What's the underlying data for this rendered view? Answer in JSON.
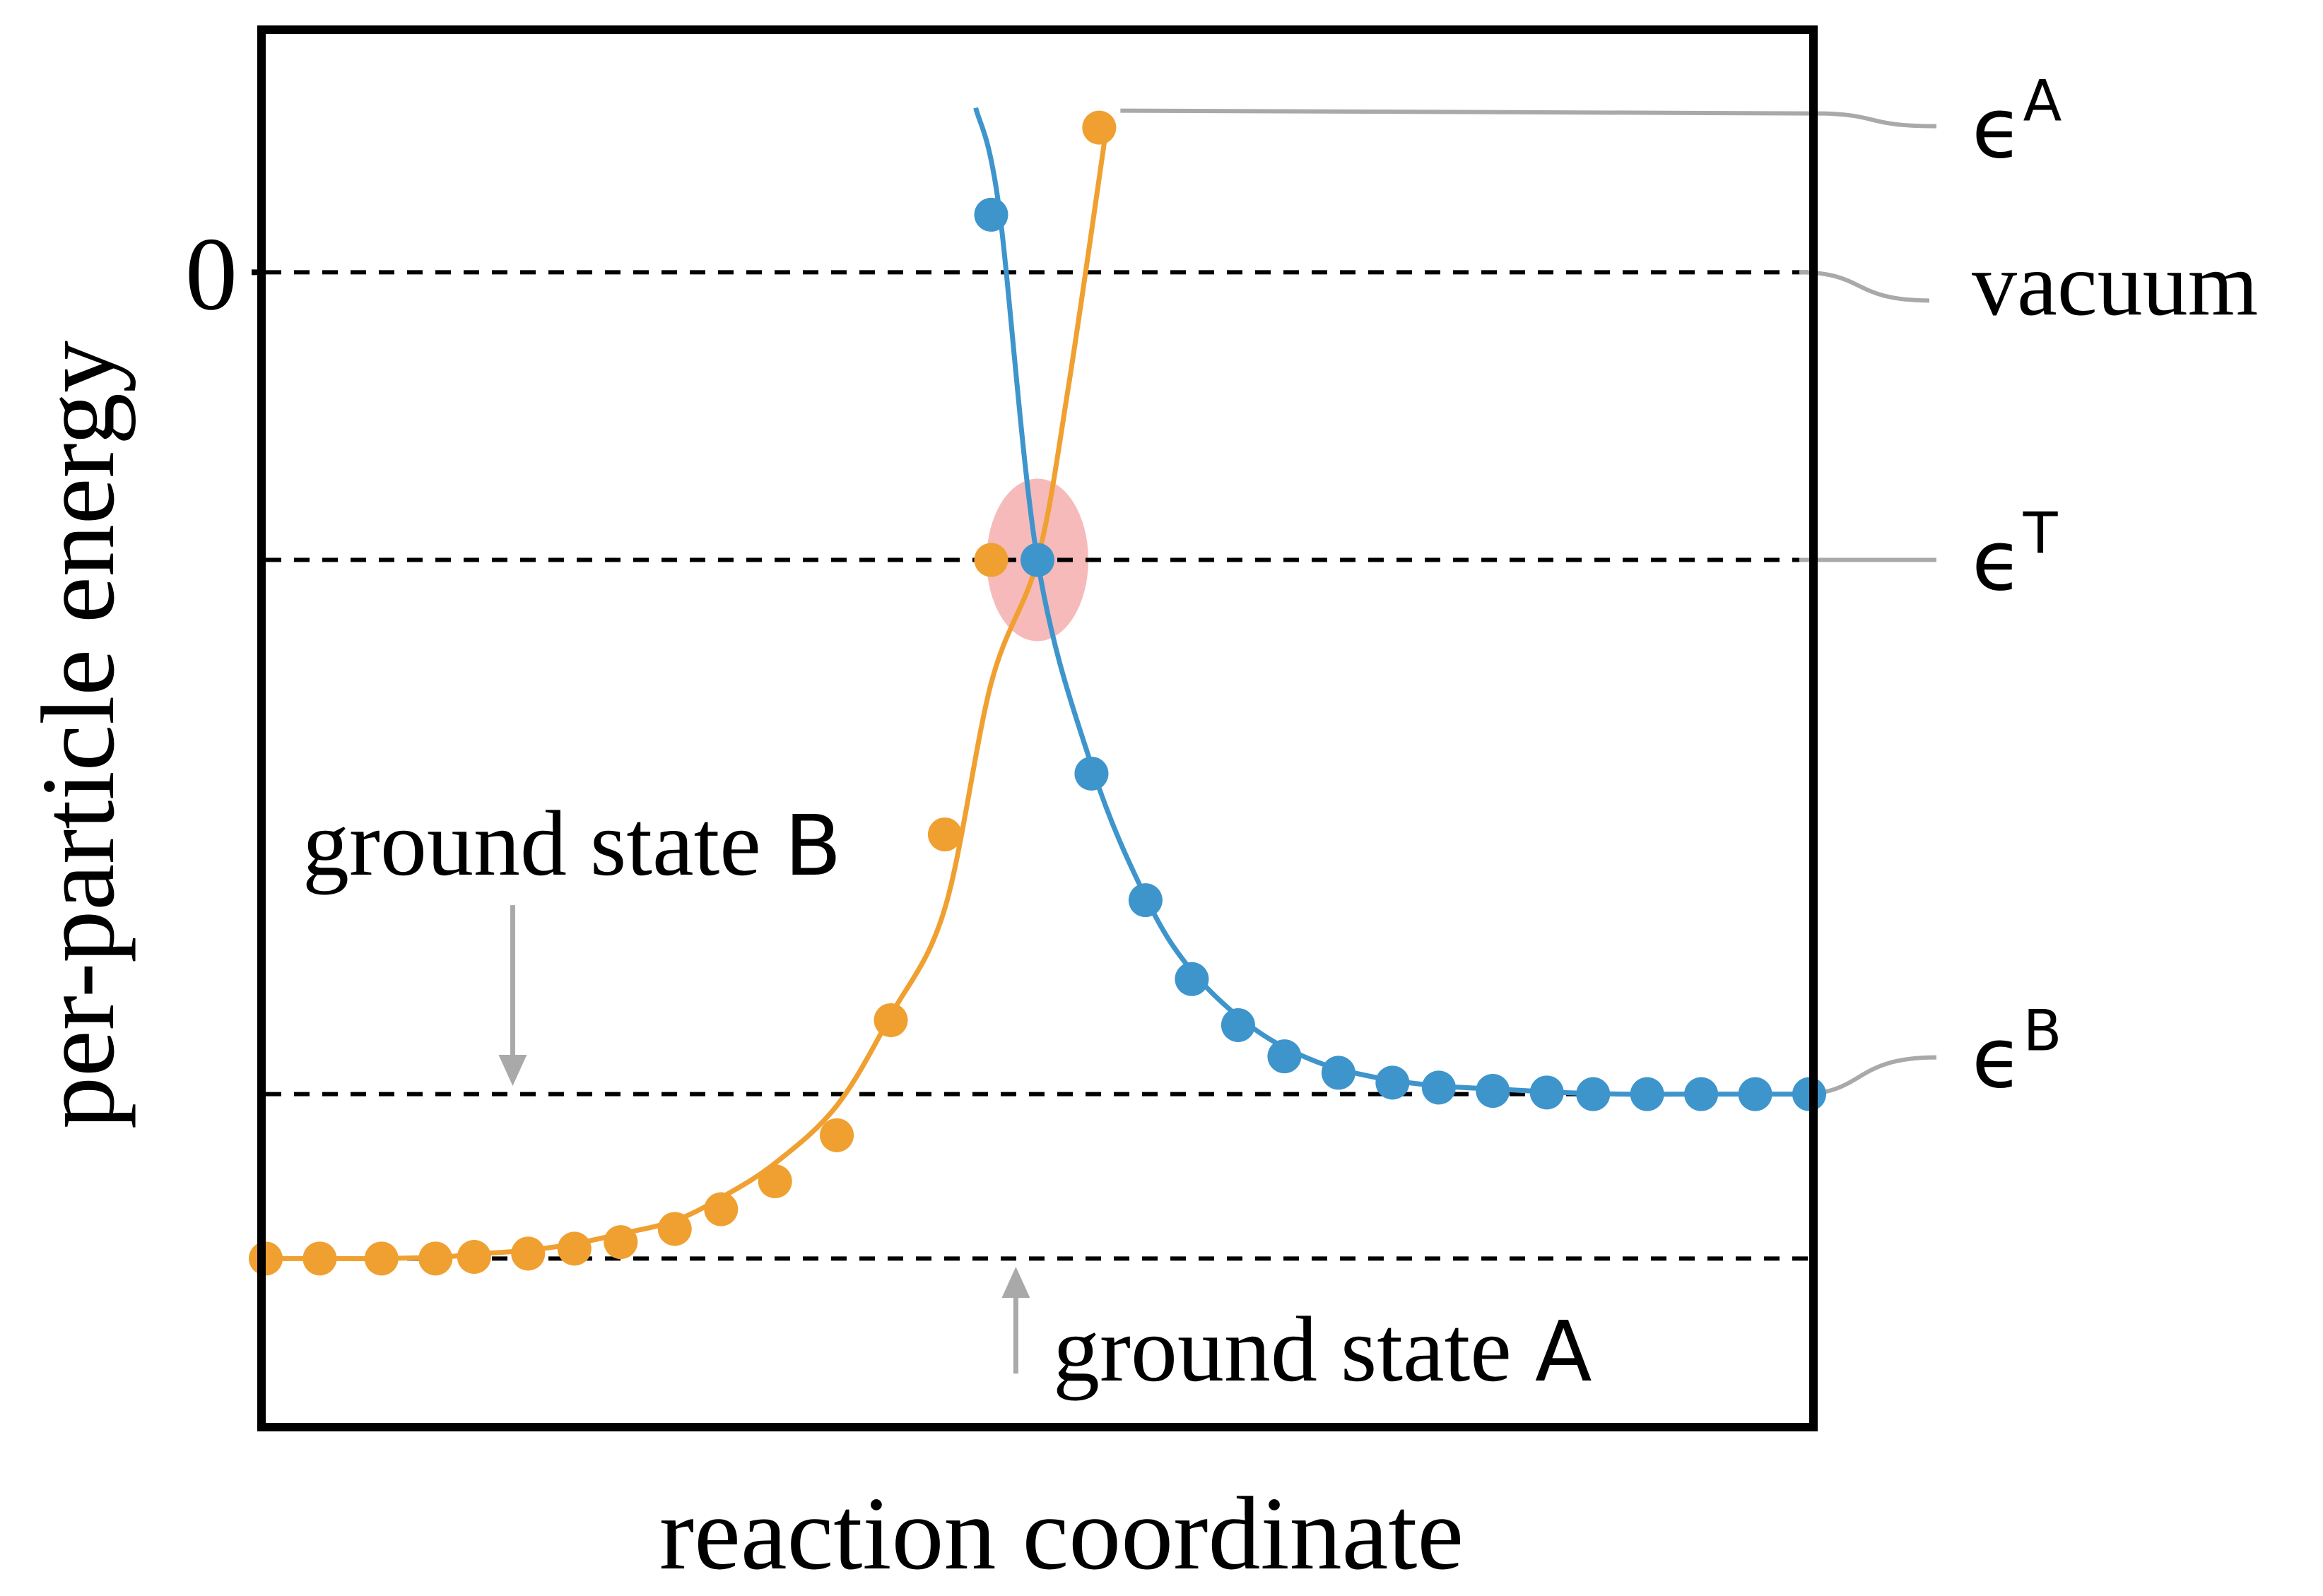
{
  "chart_data": {
    "type": "line",
    "title": "",
    "xlabel": "reaction coordinate",
    "ylabel": "per-particle energy",
    "xlim": [
      0,
      10
    ],
    "ylim": [
      -7,
      1.45
    ],
    "grid": false,
    "y_ticks": [
      {
        "value": 0,
        "label": "0"
      }
    ],
    "reference_lines": [
      {
        "name": "vacuum",
        "label": "vacuum",
        "y": 0
      },
      {
        "name": "transition",
        "label_symbol": "ϵ",
        "label_sup": "T",
        "y": -1.75
      },
      {
        "name": "state-b-level",
        "label_symbol": "ϵ",
        "label_sup": "B",
        "y": -5.0
      },
      {
        "name": "ground-state-a",
        "y": -6.0
      }
    ],
    "series_label_a": {
      "symbol": "ϵ",
      "sup": "A"
    },
    "annotations": [
      {
        "text": "ground state B",
        "arrow": "down",
        "x": 1.6,
        "y_from": -3.85,
        "y_to": -4.95
      },
      {
        "text": "ground state A",
        "arrow": "up",
        "x": 4.86,
        "y_from": -6.7,
        "y_to": -6.05
      }
    ],
    "highlight": {
      "x": 5.0,
      "y": -1.75,
      "color": "#f4a3a3"
    },
    "series": [
      {
        "name": "orange",
        "color": "#f0a030",
        "x": [
          0.0,
          0.35,
          0.75,
          1.15,
          1.4,
          1.7,
          2.0,
          2.3,
          2.65,
          2.95,
          3.3,
          3.7,
          4.05,
          4.4,
          4.7,
          5.0,
          5.2,
          5.45
        ],
        "y": [
          -6.0,
          -6.0,
          -6.0,
          -5.99,
          -5.97,
          -5.95,
          -5.91,
          -5.85,
          -5.77,
          -5.63,
          -5.42,
          -5.07,
          -4.52,
          -3.87,
          -2.5,
          -1.75,
          -0.7,
          0.9
        ],
        "markers_x": [
          0.0,
          0.35,
          0.75,
          1.1,
          1.35,
          1.7,
          2.0,
          2.3,
          2.65,
          2.95,
          3.3,
          3.7,
          4.05,
          4.4,
          4.7,
          5.0,
          5.4
        ],
        "markers_y": [
          -6.0,
          -6.0,
          -6.0,
          -6.0,
          -5.99,
          -5.97,
          -5.94,
          -5.9,
          -5.82,
          -5.7,
          -5.53,
          -5.25,
          -4.55,
          -3.42,
          -1.75,
          -1.75,
          0.88
        ]
      },
      {
        "name": "blue",
        "color": "#3e95cc",
        "x": [
          4.6,
          4.75,
          5.0,
          5.35,
          5.7,
          6.0,
          6.4,
          6.8,
          7.2,
          7.6,
          8.0,
          8.4,
          8.8,
          9.2,
          9.6,
          10.0
        ],
        "y": [
          1.0,
          0.4,
          -1.75,
          -3.0,
          -3.8,
          -4.25,
          -4.6,
          -4.8,
          -4.9,
          -4.95,
          -4.97,
          -4.99,
          -5.0,
          -5.0,
          -5.0,
          -5.0
        ],
        "markers_x": [
          4.7,
          5.0,
          5.35,
          5.7,
          6.0,
          6.3,
          6.6,
          6.95,
          7.3,
          7.6,
          7.95,
          8.3,
          8.6,
          8.95,
          9.3,
          9.65,
          10.0
        ],
        "markers_y": [
          0.35,
          -1.75,
          -3.05,
          -3.82,
          -4.3,
          -4.58,
          -4.77,
          -4.87,
          -4.93,
          -4.96,
          -4.98,
          -4.99,
          -5.0,
          -5.0,
          -5.0,
          -5.0,
          -5.0
        ]
      }
    ]
  }
}
